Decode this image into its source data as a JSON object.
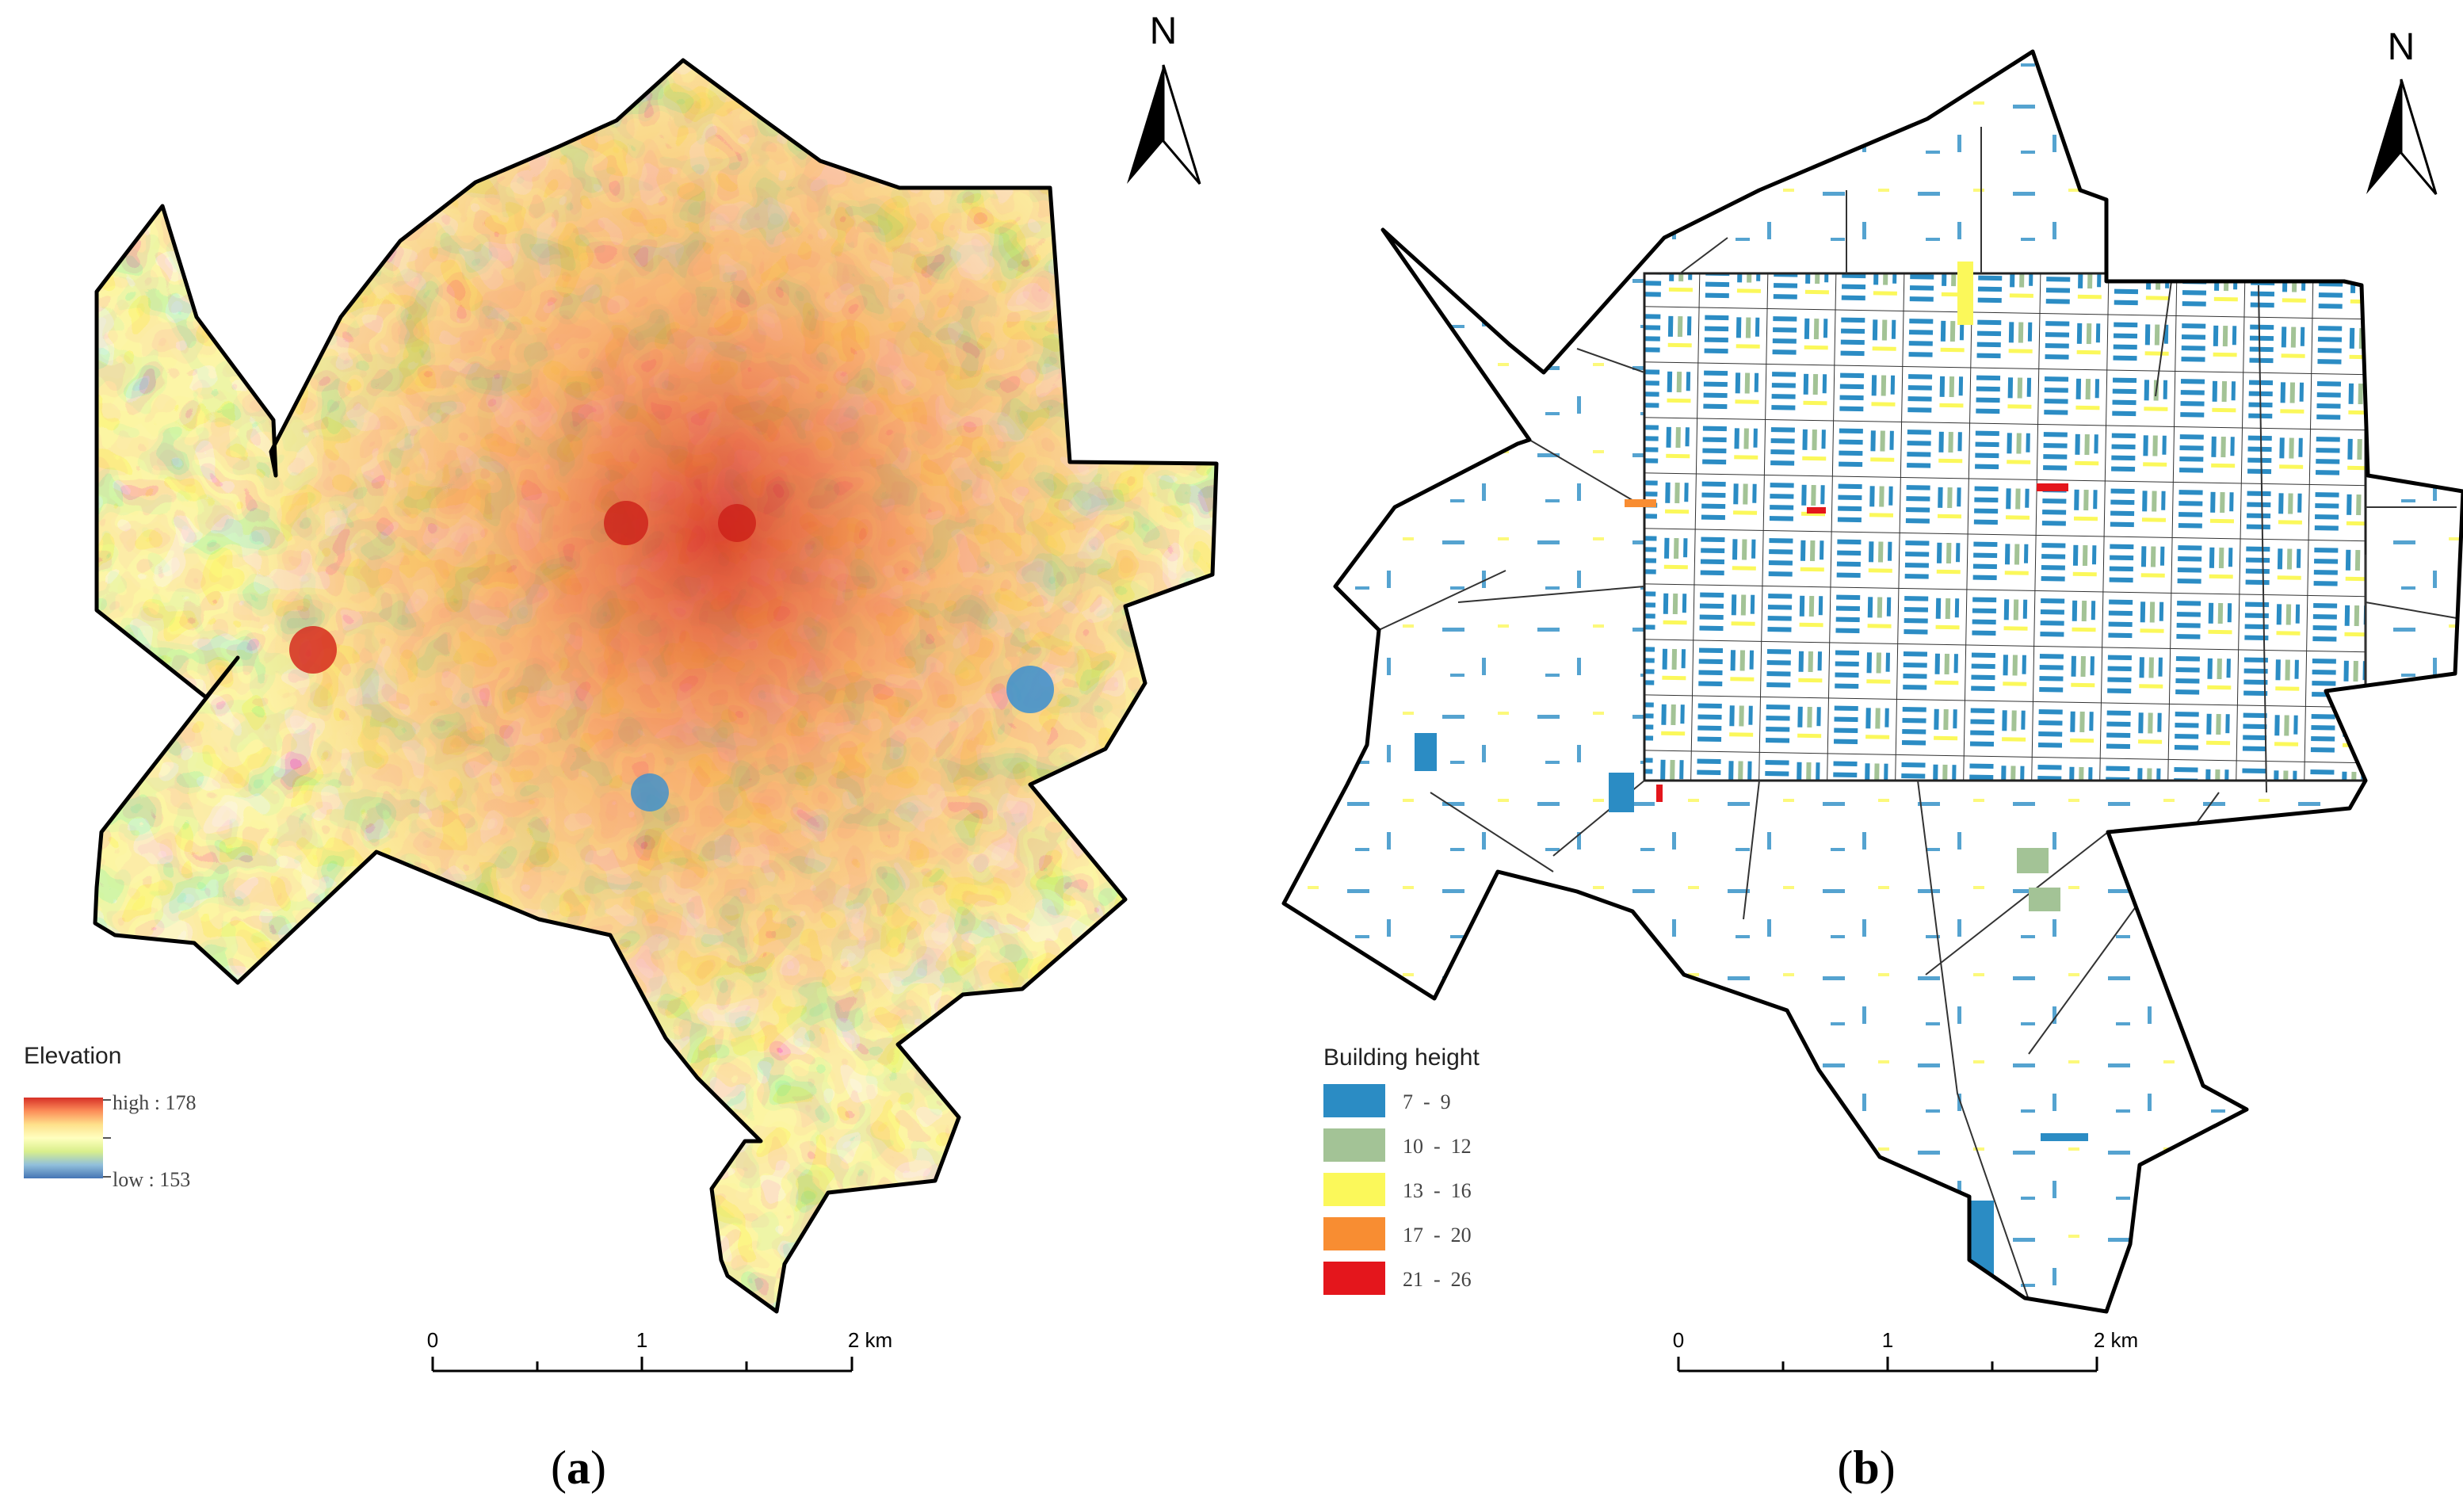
{
  "panel_a": {
    "north_label": "N",
    "legend": {
      "title": "Elevation",
      "high_label": "high : 178",
      "low_label": "low : 153",
      "high_value": 178,
      "low_value": 153,
      "ramp_colors": [
        "#d73027",
        "#fc8d59",
        "#fee08b",
        "#ffffbf",
        "#d9ef8b",
        "#91bfdb",
        "#4575b4"
      ]
    },
    "scale_bar": {
      "ticks": [
        "0",
        "1",
        "2 km"
      ]
    },
    "caption_label": "a",
    "caption": "(a)"
  },
  "panel_b": {
    "north_label": "N",
    "legend": {
      "title": "Building height",
      "classes": [
        {
          "label": "7  -  9",
          "color": "#2b8cc4"
        },
        {
          "label": "10  -  12",
          "color": "#a3c396"
        },
        {
          "label": "13  -  16",
          "color": "#fbf85a"
        },
        {
          "label": "17  -  20",
          "color": "#f88d32"
        },
        {
          "label": "21  -  26",
          "color": "#e4161c"
        }
      ]
    },
    "scale_bar": {
      "ticks": [
        "0",
        "1",
        "2 km"
      ]
    },
    "caption_label": "b",
    "caption": "(b)"
  }
}
